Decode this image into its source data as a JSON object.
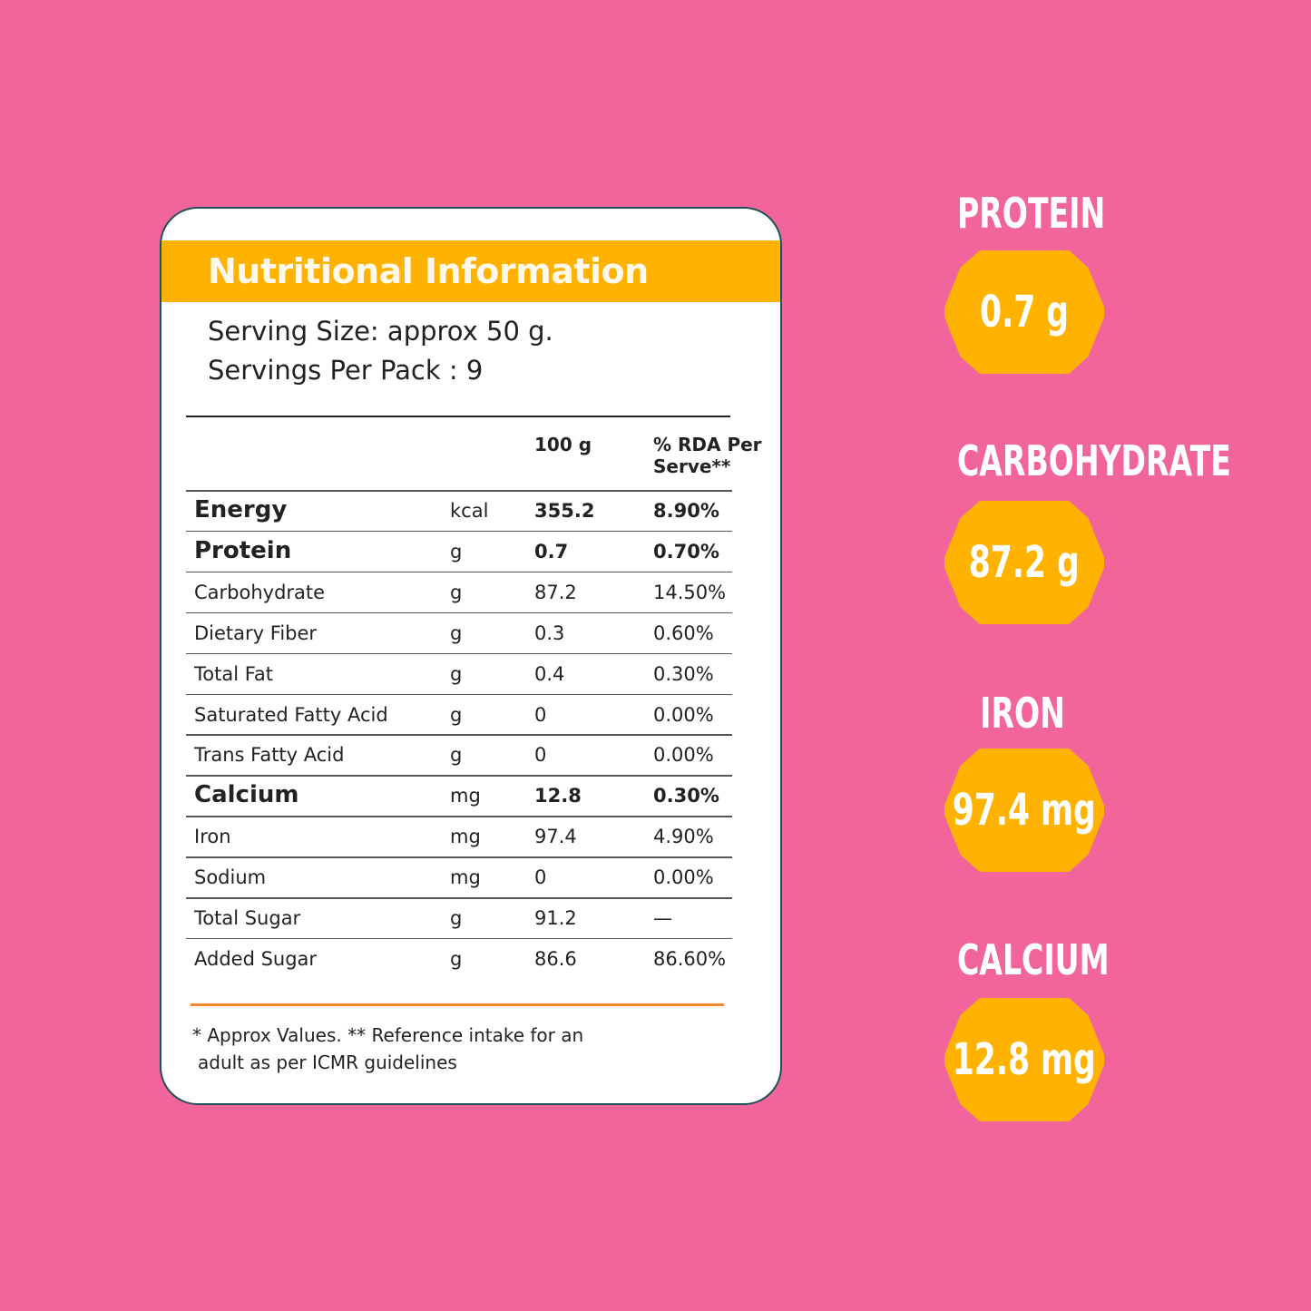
{
  "label": {
    "title": "Nutritional Information",
    "serving_size": "Serving Size: approx 50 g.",
    "servings_per_pack": "Servings Per Pack : 9",
    "col_100g": "100 g",
    "col_rda_1": "% RDA Per",
    "col_rda_2": "Serve**",
    "rows": [
      {
        "name": "Energy",
        "unit": "kcal",
        "value": "355.2",
        "rda": "8.90%",
        "bold": true
      },
      {
        "name": "Protein",
        "unit": "g",
        "value": "0.7",
        "rda": "0.70%",
        "bold": true
      },
      {
        "name": "Carbohydrate",
        "unit": "g",
        "value": "87.2",
        "rda": "14.50%",
        "bold": false
      },
      {
        "name": "Dietary Fiber",
        "unit": "g",
        "value": "0.3",
        "rda": "0.60%",
        "bold": false
      },
      {
        "name": "Total Fat",
        "unit": "g",
        "value": "0.4",
        "rda": "0.30%",
        "bold": false
      },
      {
        "name": "Saturated Fatty Acid",
        "unit": "g",
        "value": "0",
        "rda": "0.00%",
        "bold": false
      },
      {
        "name": "Trans Fatty Acid",
        "unit": "g",
        "value": "0",
        "rda": "0.00%",
        "bold": false
      },
      {
        "name": "Calcium",
        "unit": "mg",
        "value": "12.8",
        "rda": "0.30%",
        "bold": true
      },
      {
        "name": "Iron",
        "unit": "mg",
        "value": "97.4",
        "rda": "4.90%",
        "bold": false
      },
      {
        "name": "Sodium",
        "unit": "mg",
        "value": "0",
        "rda": "0.00%",
        "bold": false
      },
      {
        "name": "Total Sugar",
        "unit": "g",
        "value": "91.2",
        "rda": "—",
        "bold": false
      },
      {
        "name": "Added Sugar",
        "unit": "g",
        "value": "86.6",
        "rda": "86.60%",
        "bold": false
      }
    ],
    "footnote_1": "* Approx Values. ** Reference intake for an",
    "footnote_2": "adult as per ICMR guidelines"
  },
  "highlights": [
    {
      "label": "PROTEIN",
      "value": "0.7 g"
    },
    {
      "label": "CARBOHYDRATE",
      "value": "87.2 g"
    },
    {
      "label": "IRON",
      "value": "97.4 mg"
    },
    {
      "label": "CALCIUM",
      "value": "12.8 mg"
    }
  ],
  "colors": {
    "background": "#f2659b",
    "accent": "#ffb300",
    "border": "#1f5158",
    "divider": "#f28a2a"
  }
}
